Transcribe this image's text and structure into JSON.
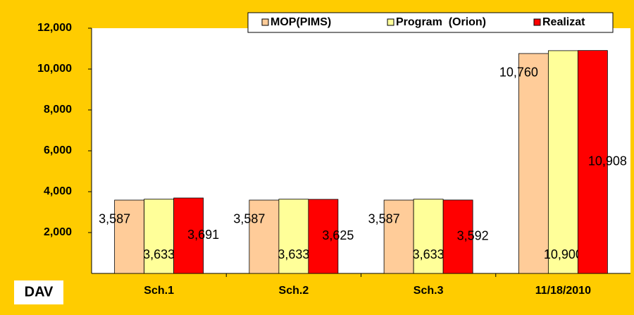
{
  "chart_data": {
    "type": "bar",
    "categories": [
      "Sch.1",
      "Sch.2",
      "Sch.3",
      "11/18/2010"
    ],
    "series": [
      {
        "name": "MOP(PIMS)",
        "color": "#FFCC99",
        "values": [
          3587,
          3587,
          3587,
          10760
        ],
        "value_labels": [
          "3,587",
          "3,587",
          "3,587",
          "10,760"
        ]
      },
      {
        "name": "Program  (Orion)",
        "color": "#FFFF99",
        "values": [
          3633,
          3633,
          3633,
          10900
        ],
        "value_labels": [
          "3,633",
          "3,633",
          "3,633",
          "10,900"
        ]
      },
      {
        "name": "Realizat",
        "color": "#FF0000",
        "values": [
          3691,
          3625,
          3592,
          10908
        ],
        "value_labels": [
          "3,691",
          "3,625",
          "3,592",
          "10,908"
        ]
      }
    ],
    "ylim": [
      0,
      12000
    ],
    "yticks": [
      {
        "value": 2000,
        "label": "2,000"
      },
      {
        "value": 4000,
        "label": "4,000"
      },
      {
        "value": 6000,
        "label": "6,000"
      },
      {
        "value": 8000,
        "label": "8,000"
      },
      {
        "value": 10000,
        "label": "10,000"
      },
      {
        "value": 12000,
        "label": "12,000"
      }
    ],
    "annotation": "DAV",
    "legend": "top"
  }
}
